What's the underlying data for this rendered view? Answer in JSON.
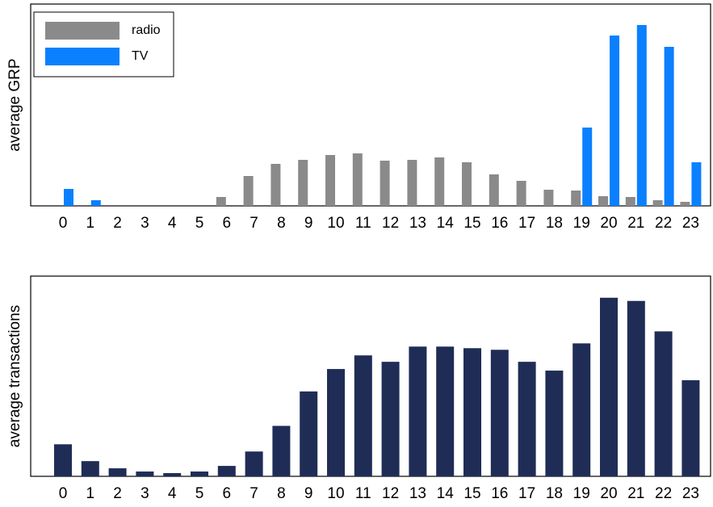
{
  "chart_data": [
    {
      "type": "bar",
      "y_label": "average GRP",
      "categories": [
        "0",
        "1",
        "2",
        "3",
        "4",
        "5",
        "6",
        "7",
        "8",
        "9",
        "10",
        "11",
        "12",
        "13",
        "14",
        "15",
        "16",
        "17",
        "18",
        "19",
        "20",
        "21",
        "22",
        "23"
      ],
      "series": [
        {
          "name": "radio",
          "color": "#8a8a8a",
          "values": [
            0,
            0,
            0,
            0,
            0,
            0,
            4.4,
            14.8,
            20.8,
            22.8,
            25.2,
            26,
            22.4,
            22.8,
            24,
            21.6,
            15.6,
            12.4,
            8,
            7.6,
            4.8,
            4.4,
            2.8,
            2
          ]
        },
        {
          "name": "TV",
          "color": "#0a80ff",
          "values": [
            8.4,
            2.8,
            0,
            0,
            0,
            0,
            0,
            0,
            0,
            0,
            0,
            0,
            0,
            0,
            0,
            0,
            0,
            0,
            0,
            38.8,
            84.4,
            89.6,
            78.8,
            21.6
          ]
        }
      ],
      "ylim": [
        0,
        100
      ],
      "legend": "upper-left"
    },
    {
      "type": "bar",
      "y_label": "average transactions",
      "categories": [
        "0",
        "1",
        "2",
        "3",
        "4",
        "5",
        "6",
        "7",
        "8",
        "9",
        "10",
        "11",
        "12",
        "13",
        "14",
        "15",
        "16",
        "17",
        "18",
        "19",
        "20",
        "21",
        "22",
        "23"
      ],
      "values": [
        40,
        19,
        10,
        6,
        4,
        6,
        13,
        31,
        63,
        106,
        134,
        151,
        143,
        162,
        162,
        160,
        158,
        143,
        132,
        166,
        223,
        219,
        181,
        120
      ],
      "color": "#1f2d56",
      "ylim": [
        0,
        250
      ]
    }
  ]
}
